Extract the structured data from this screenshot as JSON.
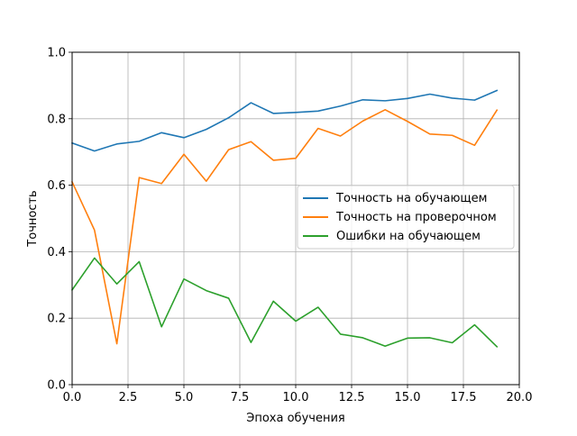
{
  "chart_data": {
    "type": "line",
    "title": "",
    "xlabel": "Эпоха обучения",
    "ylabel": "Точность",
    "xlim": [
      0,
      20
    ],
    "ylim": [
      0,
      1
    ],
    "xticks": [
      0,
      2.5,
      5,
      7.5,
      10,
      12.5,
      15,
      17.5,
      20
    ],
    "xtick_labels": [
      "0.0",
      "2.5",
      "5.0",
      "7.5",
      "10.0",
      "12.5",
      "15.0",
      "17.5",
      "20.0"
    ],
    "yticks": [
      0,
      0.2,
      0.4,
      0.6,
      0.8,
      1.0
    ],
    "ytick_labels": [
      "0.0",
      "0.2",
      "0.4",
      "0.6",
      "0.8",
      "1.0"
    ],
    "grid": true,
    "legend_position": "center-right",
    "x": [
      0,
      1,
      2,
      3,
      4,
      5,
      6,
      7,
      8,
      9,
      10,
      11,
      12,
      13,
      14,
      15,
      16,
      17,
      18,
      19
    ],
    "series": [
      {
        "name": "Точность на обучающем",
        "color": "#1f77b4",
        "values": [
          0.727,
          0.703,
          0.724,
          0.732,
          0.758,
          0.743,
          0.768,
          0.803,
          0.848,
          0.816,
          0.819,
          0.823,
          0.838,
          0.857,
          0.854,
          0.861,
          0.874,
          0.862,
          0.856,
          0.885
        ]
      },
      {
        "name": "Точность на проверочном",
        "color": "#ff7f0e",
        "values": [
          0.61,
          0.465,
          0.123,
          0.623,
          0.605,
          0.693,
          0.612,
          0.707,
          0.731,
          0.675,
          0.681,
          0.771,
          0.748,
          0.793,
          0.827,
          0.792,
          0.754,
          0.75,
          0.72,
          0.826
        ]
      },
      {
        "name": "Ошибки на обучающем",
        "color": "#2ca02c",
        "values": [
          0.285,
          0.381,
          0.303,
          0.37,
          0.174,
          0.318,
          0.283,
          0.26,
          0.127,
          0.251,
          0.191,
          0.233,
          0.152,
          0.141,
          0.116,
          0.14,
          0.141,
          0.126,
          0.18,
          0.114
        ]
      }
    ]
  }
}
